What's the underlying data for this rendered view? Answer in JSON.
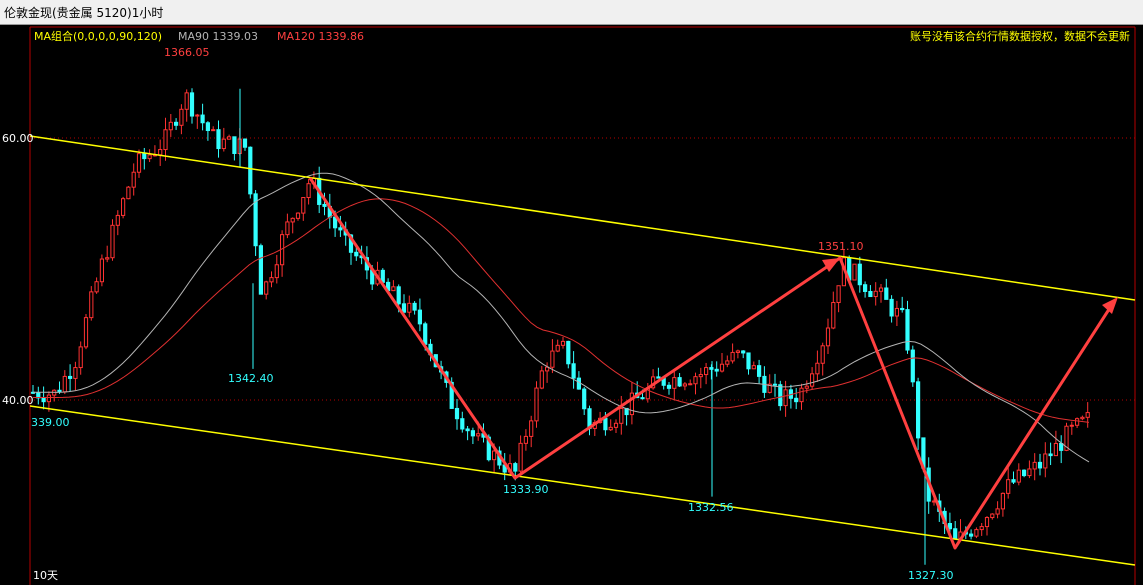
{
  "window": {
    "title": "伦敦金现(贵金属 5120)1小时"
  },
  "legend": {
    "ma_group": "MA组合(0,0,0,0,90,120)",
    "ma90": "MA90 1339.03",
    "ma120": "MA120 1339.86"
  },
  "notice": "账号没有该合约行情数据授权，数据不会更新",
  "period_label": "10天",
  "colors": {
    "up": "#ff3232",
    "down": "#33ffff",
    "ma90": "#b4b4b4",
    "ma120": "#e03030",
    "channel": "#ffff00",
    "arrow": "#ff4040",
    "frame": "#b40000"
  },
  "chart_data": {
    "type": "candlestick",
    "y_axis_ticks": [
      "60.00",
      "40.00"
    ],
    "ylim": [
      1326.9,
      1366.6
    ],
    "annotations": [
      {
        "text": "1366.05",
        "price": 1366.05,
        "kind": "high"
      },
      {
        "text": "1342.40",
        "price": 1342.4,
        "kind": "low"
      },
      {
        "text": "339.00",
        "price": 1339.0,
        "kind": "low"
      },
      {
        "text": "1333.90",
        "price": 1333.9,
        "kind": "low"
      },
      {
        "text": "1332.56",
        "price": 1332.56,
        "kind": "low"
      },
      {
        "text": "1351.10",
        "price": 1351.1,
        "kind": "high"
      },
      {
        "text": "1327.30",
        "price": 1327.3,
        "kind": "low"
      }
    ]
  }
}
